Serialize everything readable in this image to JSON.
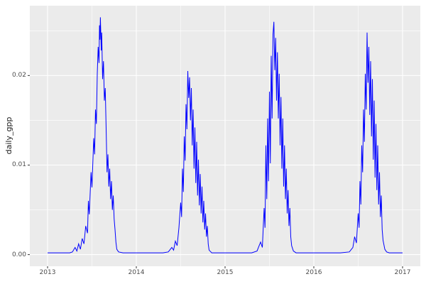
{
  "figure": {
    "y_axis_title": "daily_gpp",
    "x_ticks": [
      2013,
      2014,
      2015,
      2016,
      2017
    ],
    "y_ticks": [
      "0.00",
      "0.01",
      "0.02"
    ],
    "y_tick_values": [
      0,
      0.01,
      0.02
    ],
    "colors": {
      "outer_bg": "#FFFFFF",
      "panel_bg": "#EBEBEB",
      "grid_major": "#FFFFFF",
      "grid_minor": "#FFFFFF",
      "line": "#0000FF",
      "tick_mark": "#333333",
      "tick_text": "#4D4D4D",
      "axis_title_text": "#1A1A1A"
    }
  },
  "chart_data": {
    "type": "line",
    "title": "",
    "xlabel": "",
    "ylabel": "daily_gpp",
    "xlim": [
      2012.8,
      2017.2
    ],
    "ylim": [
      -0.0013,
      0.0278
    ],
    "x_tick_values": [
      2013,
      2014,
      2015,
      2016,
      2017
    ],
    "y_tick_values": [
      0,
      0.01,
      0.02
    ],
    "x_minor_ticks": [
      2013.5,
      2014.5,
      2015.5,
      2016.5
    ],
    "y_minor_ticks": [
      0.005,
      0.015,
      0.025
    ],
    "grid": true,
    "legend": false,
    "series": [
      {
        "name": "daily_gpp",
        "points": [
          [
            2013.0,
            0.0002
          ],
          [
            2013.05,
            0.0002
          ],
          [
            2013.1,
            0.0002
          ],
          [
            2013.15,
            0.0002
          ],
          [
            2013.2,
            0.0002
          ],
          [
            2013.25,
            0.0002
          ],
          [
            2013.28,
            0.0003
          ],
          [
            2013.31,
            0.0008
          ],
          [
            2013.33,
            0.0004
          ],
          [
            2013.35,
            0.0012
          ],
          [
            2013.37,
            0.0006
          ],
          [
            2013.39,
            0.0018
          ],
          [
            2013.41,
            0.0012
          ],
          [
            2013.43,
            0.0032
          ],
          [
            2013.45,
            0.0024
          ],
          [
            2013.46,
            0.006
          ],
          [
            2013.47,
            0.0045
          ],
          [
            2013.49,
            0.0092
          ],
          [
            2013.5,
            0.0075
          ],
          [
            2013.52,
            0.013
          ],
          [
            2013.53,
            0.0112
          ],
          [
            2013.54,
            0.0162
          ],
          [
            2013.55,
            0.0146
          ],
          [
            2013.56,
            0.0202
          ],
          [
            2013.57,
            0.0232
          ],
          [
            2013.58,
            0.0214
          ],
          [
            2013.585,
            0.0256
          ],
          [
            2013.59,
            0.024
          ],
          [
            2013.595,
            0.0265
          ],
          [
            2013.605,
            0.0228
          ],
          [
            2013.61,
            0.0248
          ],
          [
            2013.62,
            0.0196
          ],
          [
            2013.63,
            0.0216
          ],
          [
            2013.64,
            0.0172
          ],
          [
            2013.65,
            0.0186
          ],
          [
            2013.66,
            0.014
          ],
          [
            2013.67,
            0.0092
          ],
          [
            2013.68,
            0.0112
          ],
          [
            2013.69,
            0.0076
          ],
          [
            2013.7,
            0.0096
          ],
          [
            2013.71,
            0.0062
          ],
          [
            2013.72,
            0.0082
          ],
          [
            2013.73,
            0.005
          ],
          [
            2013.74,
            0.0066
          ],
          [
            2013.75,
            0.004
          ],
          [
            2013.76,
            0.0028
          ],
          [
            2013.77,
            0.0014
          ],
          [
            2013.78,
            0.0006
          ],
          [
            2013.8,
            0.0003
          ],
          [
            2013.85,
            0.0002
          ],
          [
            2013.9,
            0.0002
          ],
          [
            2013.95,
            0.0002
          ],
          [
            2014.0,
            0.0002
          ],
          [
            2014.1,
            0.0002
          ],
          [
            2014.2,
            0.0002
          ],
          [
            2014.3,
            0.0002
          ],
          [
            2014.36,
            0.0003
          ],
          [
            2014.4,
            0.0008
          ],
          [
            2014.42,
            0.0005
          ],
          [
            2014.44,
            0.0015
          ],
          [
            2014.46,
            0.001
          ],
          [
            2014.48,
            0.003
          ],
          [
            2014.5,
            0.0058
          ],
          [
            2014.51,
            0.0042
          ],
          [
            2014.52,
            0.0096
          ],
          [
            2014.53,
            0.007
          ],
          [
            2014.54,
            0.0132
          ],
          [
            2014.55,
            0.0105
          ],
          [
            2014.56,
            0.0168
          ],
          [
            2014.57,
            0.014
          ],
          [
            2014.58,
            0.0205
          ],
          [
            2014.59,
            0.0175
          ],
          [
            2014.6,
            0.0198
          ],
          [
            2014.61,
            0.015
          ],
          [
            2014.62,
            0.0186
          ],
          [
            2014.63,
            0.0122
          ],
          [
            2014.64,
            0.0162
          ],
          [
            2014.65,
            0.0096
          ],
          [
            2014.66,
            0.0142
          ],
          [
            2014.67,
            0.008
          ],
          [
            2014.68,
            0.0126
          ],
          [
            2014.69,
            0.0066
          ],
          [
            2014.7,
            0.0106
          ],
          [
            2014.71,
            0.0055
          ],
          [
            2014.72,
            0.009
          ],
          [
            2014.73,
            0.0046
          ],
          [
            2014.74,
            0.0076
          ],
          [
            2014.75,
            0.0036
          ],
          [
            2014.76,
            0.006
          ],
          [
            2014.77,
            0.0028
          ],
          [
            2014.78,
            0.0046
          ],
          [
            2014.79,
            0.002
          ],
          [
            2014.8,
            0.0032
          ],
          [
            2014.81,
            0.0012
          ],
          [
            2014.82,
            0.0005
          ],
          [
            2014.85,
            0.0002
          ],
          [
            2014.9,
            0.0002
          ],
          [
            2014.95,
            0.0002
          ],
          [
            2015.0,
            0.0002
          ],
          [
            2015.1,
            0.0002
          ],
          [
            2015.2,
            0.0002
          ],
          [
            2015.3,
            0.0002
          ],
          [
            2015.36,
            0.0004
          ],
          [
            2015.4,
            0.0014
          ],
          [
            2015.42,
            0.0008
          ],
          [
            2015.44,
            0.0052
          ],
          [
            2015.45,
            0.003
          ],
          [
            2015.46,
            0.0122
          ],
          [
            2015.47,
            0.0062
          ],
          [
            2015.48,
            0.0152
          ],
          [
            2015.49,
            0.0082
          ],
          [
            2015.5,
            0.0182
          ],
          [
            2015.51,
            0.0102
          ],
          [
            2015.52,
            0.0222
          ],
          [
            2015.53,
            0.0152
          ],
          [
            2015.54,
            0.0246
          ],
          [
            2015.55,
            0.026
          ],
          [
            2015.56,
            0.0206
          ],
          [
            2015.57,
            0.0242
          ],
          [
            2015.58,
            0.0172
          ],
          [
            2015.59,
            0.0226
          ],
          [
            2015.6,
            0.0152
          ],
          [
            2015.61,
            0.0202
          ],
          [
            2015.62,
            0.0122
          ],
          [
            2015.63,
            0.0176
          ],
          [
            2015.64,
            0.0096
          ],
          [
            2015.65,
            0.0152
          ],
          [
            2015.66,
            0.0076
          ],
          [
            2015.67,
            0.0122
          ],
          [
            2015.68,
            0.0062
          ],
          [
            2015.69,
            0.0096
          ],
          [
            2015.7,
            0.0046
          ],
          [
            2015.71,
            0.0072
          ],
          [
            2015.72,
            0.0032
          ],
          [
            2015.73,
            0.0052
          ],
          [
            2015.74,
            0.002
          ],
          [
            2015.75,
            0.001
          ],
          [
            2015.77,
            0.0004
          ],
          [
            2015.8,
            0.0002
          ],
          [
            2015.9,
            0.0002
          ],
          [
            2015.95,
            0.0002
          ],
          [
            2016.0,
            0.0002
          ],
          [
            2016.1,
            0.0002
          ],
          [
            2016.2,
            0.0002
          ],
          [
            2016.3,
            0.0002
          ],
          [
            2016.4,
            0.0003
          ],
          [
            2016.44,
            0.0008
          ],
          [
            2016.46,
            0.002
          ],
          [
            2016.48,
            0.0013
          ],
          [
            2016.5,
            0.0046
          ],
          [
            2016.51,
            0.003
          ],
          [
            2016.52,
            0.0082
          ],
          [
            2016.53,
            0.0056
          ],
          [
            2016.54,
            0.0122
          ],
          [
            2016.55,
            0.0092
          ],
          [
            2016.56,
            0.0162
          ],
          [
            2016.57,
            0.0126
          ],
          [
            2016.58,
            0.0202
          ],
          [
            2016.59,
            0.0162
          ],
          [
            2016.6,
            0.0248
          ],
          [
            2016.61,
            0.0192
          ],
          [
            2016.62,
            0.0232
          ],
          [
            2016.63,
            0.0156
          ],
          [
            2016.64,
            0.0216
          ],
          [
            2016.65,
            0.0132
          ],
          [
            2016.66,
            0.0196
          ],
          [
            2016.67,
            0.0106
          ],
          [
            2016.68,
            0.0172
          ],
          [
            2016.69,
            0.0086
          ],
          [
            2016.7,
            0.0146
          ],
          [
            2016.71,
            0.0072
          ],
          [
            2016.72,
            0.0122
          ],
          [
            2016.73,
            0.0056
          ],
          [
            2016.74,
            0.0092
          ],
          [
            2016.75,
            0.0042
          ],
          [
            2016.76,
            0.0066
          ],
          [
            2016.77,
            0.0028
          ],
          [
            2016.78,
            0.0016
          ],
          [
            2016.8,
            0.0006
          ],
          [
            2016.82,
            0.0003
          ],
          [
            2016.85,
            0.0002
          ],
          [
            2016.9,
            0.0002
          ],
          [
            2016.95,
            0.0002
          ],
          [
            2017.0,
            0.0002
          ]
        ]
      }
    ]
  }
}
